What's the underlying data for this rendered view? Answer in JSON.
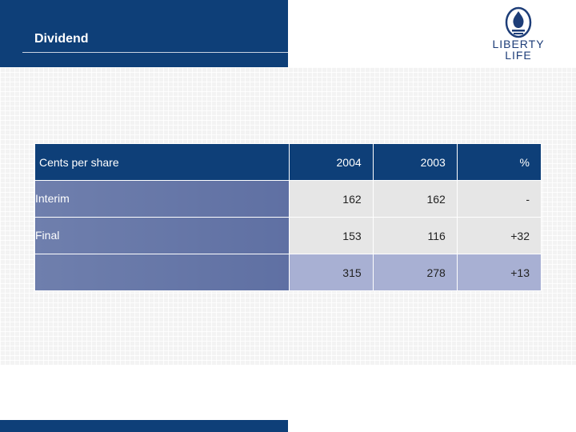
{
  "title": "Dividend",
  "logo": {
    "line1": "LIBERTY",
    "line2": "LIFE"
  },
  "table": {
    "header": {
      "label": "Cents per share",
      "columns": [
        "2004",
        "2003",
        "%"
      ]
    },
    "rows": [
      {
        "label": "Interim",
        "values": [
          "162",
          "162",
          "-"
        ]
      },
      {
        "label": "Final",
        "values": [
          "153",
          "116",
          "+32"
        ]
      },
      {
        "label": "",
        "values": [
          "315",
          "278",
          "+13"
        ]
      }
    ]
  },
  "colors": {
    "brand_navy": "#0e3f78",
    "row_label": "#6f7fad",
    "total_row": "#a8b0d3"
  }
}
